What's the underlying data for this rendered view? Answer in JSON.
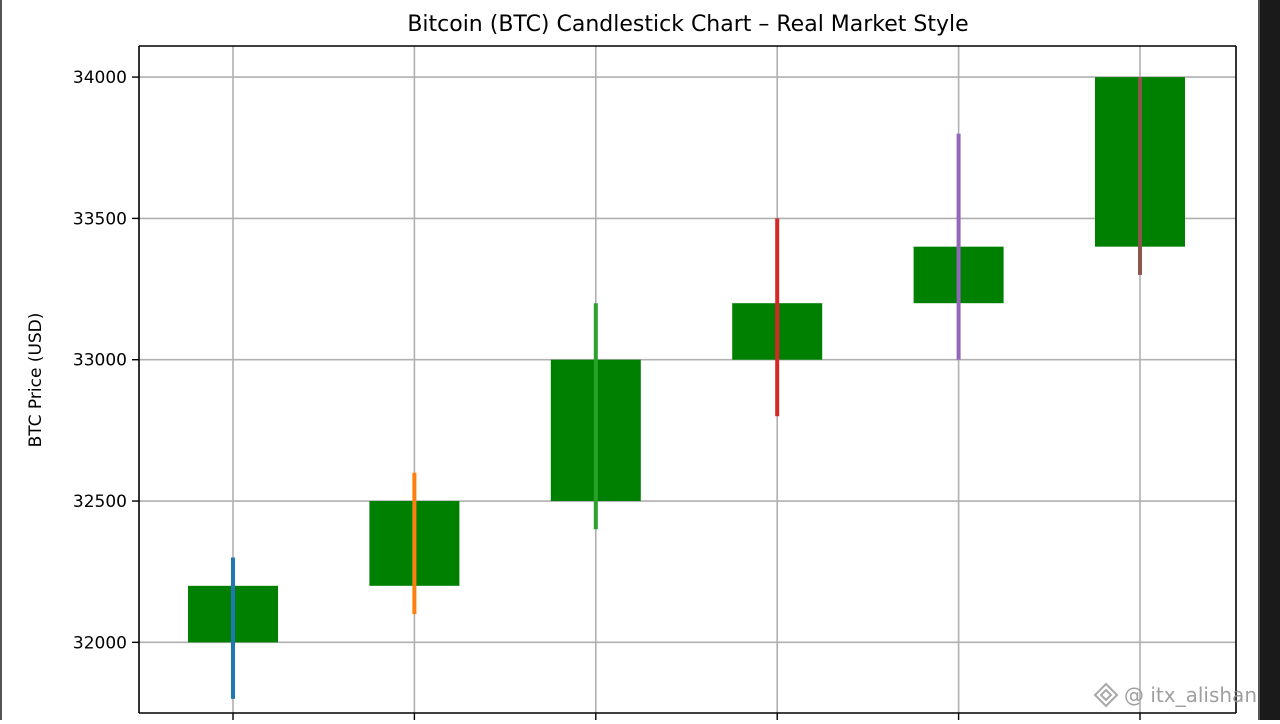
{
  "chart_data": {
    "type": "candlestick",
    "title": "Bitcoin (BTC) Candlestick Chart – Real Market Style",
    "xlabel": "",
    "ylabel": "BTC Price (USD)",
    "ylim": [
      31750,
      34110
    ],
    "yticks": [
      32000,
      32500,
      33000,
      33500,
      34000
    ],
    "grid": true,
    "candles": [
      {
        "open": 32000,
        "close": 32200,
        "high": 32300,
        "low": 31800,
        "body_color": "#008000",
        "wick_color": "#1f77b4"
      },
      {
        "open": 32200,
        "close": 32500,
        "high": 32600,
        "low": 32100,
        "body_color": "#008000",
        "wick_color": "#ff7f0e"
      },
      {
        "open": 32500,
        "close": 33000,
        "high": 33200,
        "low": 32400,
        "body_color": "#008000",
        "wick_color": "#2ca02c"
      },
      {
        "open": 33000,
        "close": 33200,
        "high": 33500,
        "low": 32800,
        "body_color": "#008000",
        "wick_color": "#d62728"
      },
      {
        "open": 33200,
        "close": 33400,
        "high": 33800,
        "low": 33000,
        "body_color": "#008000",
        "wick_color": "#9467bd"
      },
      {
        "open": 33400,
        "close": 34000,
        "high": 34000,
        "low": 33300,
        "body_color": "#008000",
        "wick_color": "#8c564b"
      }
    ]
  },
  "watermark": {
    "text": "@ itx_alishan",
    "icon": "diamond-logo-icon"
  }
}
